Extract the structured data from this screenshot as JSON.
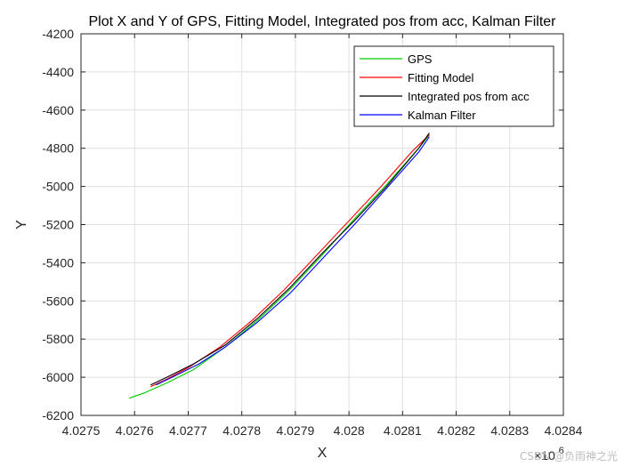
{
  "chart_data": {
    "type": "line",
    "title": "Plot X and Y of GPS, Fitting Model, Integrated pos from acc, Kalman Filter",
    "xlabel": "X",
    "ylabel": "Y",
    "x_exponent_base": "×10",
    "x_exponent_power": "6",
    "xlim": [
      4.0275,
      4.0284
    ],
    "ylim": [
      -6200,
      -4200
    ],
    "x_ticks": [
      4.0275,
      4.0276,
      4.0277,
      4.0278,
      4.0279,
      4.028,
      4.0281,
      4.0282,
      4.0283,
      4.0284
    ],
    "x_tick_labels": [
      "4.0275",
      "4.0276",
      "4.0277",
      "4.0278",
      "4.0279",
      "4.028",
      "4.0281",
      "4.0282",
      "4.0283",
      "4.0284"
    ],
    "y_ticks": [
      -4200,
      -4400,
      -4600,
      -4800,
      -5000,
      -5200,
      -5400,
      -5600,
      -5800,
      -6000,
      -6200
    ],
    "y_tick_labels": [
      "-4200",
      "-4400",
      "-4600",
      "-4800",
      "-5000",
      "-5200",
      "-5400",
      "-5600",
      "-5800",
      "-6000",
      "-6200"
    ],
    "grid": true,
    "legend_position": "top-right",
    "series": [
      {
        "name": "GPS",
        "color": "#00cc00",
        "x": [
          4.02759,
          4.02762,
          4.02766,
          4.02771,
          4.02777,
          4.02783,
          4.02789,
          4.02795,
          4.02801,
          4.02807,
          4.02813,
          4.02815
        ],
        "y": [
          -6110,
          -6080,
          -6030,
          -5960,
          -5840,
          -5700,
          -5540,
          -5360,
          -5170,
          -4990,
          -4800,
          -4730
        ]
      },
      {
        "name": "Fitting Model",
        "color": "#ff0000",
        "x": [
          4.02763,
          4.02766,
          4.0277,
          4.02776,
          4.02782,
          4.02788,
          4.02794,
          4.028,
          4.02806,
          4.02812,
          4.02815
        ],
        "y": [
          -6050,
          -6010,
          -5950,
          -5840,
          -5700,
          -5540,
          -5360,
          -5180,
          -5000,
          -4810,
          -4730
        ]
      },
      {
        "name": "Integrated pos from acc",
        "color": "#000000",
        "x": [
          4.02763,
          4.02766,
          4.02771,
          4.02777,
          4.02783,
          4.02789,
          4.02795,
          4.02801,
          4.02807,
          4.02813,
          4.02815
        ],
        "y": [
          -6040,
          -6000,
          -5930,
          -5830,
          -5690,
          -5530,
          -5350,
          -5180,
          -5000,
          -4800,
          -4720
        ]
      },
      {
        "name": "Kalman Filter",
        "color": "#0000ff",
        "x": [
          4.02764,
          4.02767,
          4.02772,
          4.02777,
          4.02783,
          4.02789,
          4.02795,
          4.02801,
          4.02807,
          4.02813,
          4.02815
        ],
        "y": [
          -6040,
          -6000,
          -5930,
          -5840,
          -5710,
          -5560,
          -5380,
          -5200,
          -5010,
          -4820,
          -4740
        ]
      }
    ]
  },
  "watermark": "CSDN @负雨神之光"
}
